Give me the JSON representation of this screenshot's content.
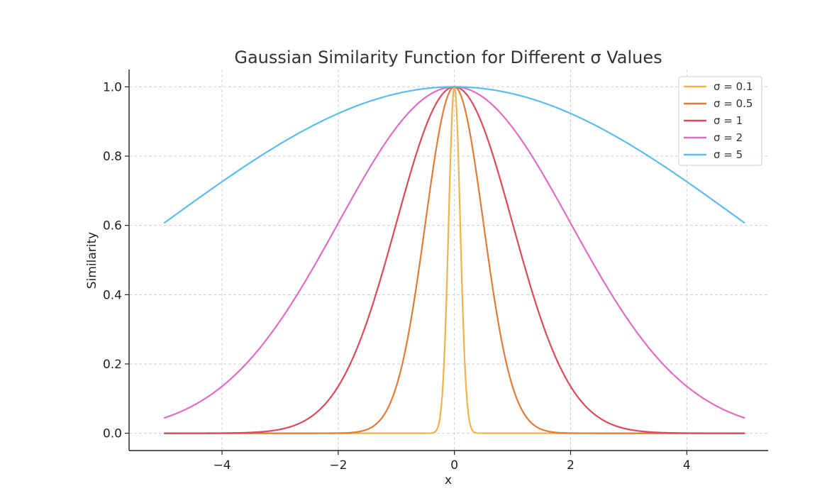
{
  "chart_data": {
    "type": "line",
    "title": "Gaussian Similarity Function for Different σ Values",
    "xlabel": "x",
    "ylabel": "Similarity",
    "xlim": [
      -5.6,
      5.4
    ],
    "ylim": [
      -0.05,
      1.05
    ],
    "x_range": [
      -5,
      5
    ],
    "xticks": [
      -4,
      -2,
      0,
      2,
      4
    ],
    "xtick_labels": [
      "−4",
      "−2",
      "0",
      "2",
      "4"
    ],
    "yticks": [
      0.0,
      0.2,
      0.4,
      0.6,
      0.8,
      1.0
    ],
    "ytick_labels": [
      "0.0",
      "0.2",
      "0.4",
      "0.6",
      "0.8",
      "1.0"
    ],
    "function": "exp(-x^2 / (2 σ^2))",
    "grid": true,
    "legend_position": "top-right",
    "series": [
      {
        "name": "σ = 0.1",
        "sigma": 0.1,
        "color": "#f2b24b"
      },
      {
        "name": "σ = 0.5",
        "sigma": 0.5,
        "color": "#e07b3a"
      },
      {
        "name": "σ = 1",
        "sigma": 1,
        "color": "#d94a5a"
      },
      {
        "name": "σ = 2",
        "sigma": 2,
        "color": "#e06cc4"
      },
      {
        "name": "σ = 5",
        "sigma": 5,
        "color": "#5bbcee"
      }
    ]
  }
}
